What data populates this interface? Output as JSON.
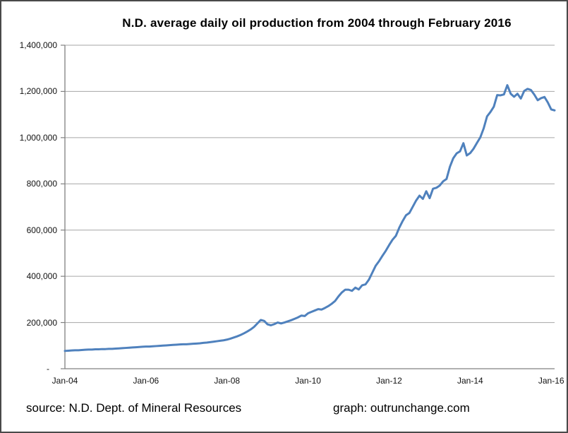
{
  "title": "N.D. average daily oil production from 2004 through February 2016",
  "footer": {
    "source": "source: N.D. Dept. of Mineral Resources",
    "credit": "graph: outrunchange.com"
  },
  "colors": {
    "line": "#4F81BD",
    "gridline": "#A6A6A6",
    "axis": "#808080",
    "text": "#111111",
    "frame_border": "#4a4a4a"
  },
  "chart_data": {
    "type": "line",
    "title": "N.D. average daily oil production from 2004 through February 2016",
    "xlabel": "",
    "ylabel": "",
    "ylim": [
      0,
      1400000
    ],
    "y_tick_interval": 200000,
    "y_tick_labels": [
      "-",
      "200,000",
      "400,000",
      "600,000",
      "800,000",
      "1,000,000",
      "1,200,000",
      "1,400,000"
    ],
    "x_tick_labels": [
      "Jan-04",
      "Jan-06",
      "Jan-08",
      "Jan-10",
      "Jan-12",
      "Jan-14",
      "Jan-16"
    ],
    "x_tick_month_indices": [
      0,
      24,
      48,
      72,
      96,
      120,
      144
    ],
    "grid": "horizontal",
    "legend": "none",
    "x_start": "Jan-2004",
    "x_end": "Feb-2016",
    "series": [
      {
        "name": "N.D. average daily oil production (bbl/day)",
        "color": "#4F81BD",
        "values": [
          77000,
          78000,
          79000,
          80000,
          80000,
          81000,
          82000,
          83000,
          83000,
          84000,
          84000,
          85000,
          85000,
          86000,
          86000,
          87000,
          88000,
          89000,
          90000,
          91000,
          92000,
          93000,
          94000,
          95000,
          96000,
          96000,
          97000,
          98000,
          99000,
          100000,
          101000,
          102000,
          103000,
          104000,
          105000,
          106000,
          106000,
          107000,
          108000,
          109000,
          110000,
          112000,
          113000,
          115000,
          117000,
          119000,
          121000,
          123000,
          126000,
          130000,
          135000,
          140000,
          146000,
          153000,
          161000,
          170000,
          181000,
          196000,
          211000,
          207000,
          192000,
          188000,
          193000,
          200000,
          196000,
          200000,
          205000,
          210000,
          216000,
          222000,
          230000,
          228000,
          240000,
          246000,
          252000,
          258000,
          256000,
          263000,
          271000,
          281000,
          293000,
          313000,
          330000,
          342000,
          342000,
          337000,
          351000,
          343000,
          361000,
          365000,
          385000,
          415000,
          445000,
          465000,
          488000,
          510000,
          535000,
          558000,
          575000,
          610000,
          639000,
          664000,
          674000,
          701000,
          728000,
          749000,
          735000,
          768000,
          738000,
          779000,
          783000,
          793000,
          811000,
          821000,
          874000,
          911000,
          932000,
          941000,
          976000,
          923000,
          933000,
          952000,
          977000,
          1001000,
          1040000,
          1092000,
          1111000,
          1134000,
          1184000,
          1183000,
          1187000,
          1227000,
          1190000,
          1177000,
          1190000,
          1169000,
          1202000,
          1211000,
          1206000,
          1186000,
          1162000,
          1171000,
          1176000,
          1152000,
          1122000,
          1118000
        ]
      }
    ]
  }
}
